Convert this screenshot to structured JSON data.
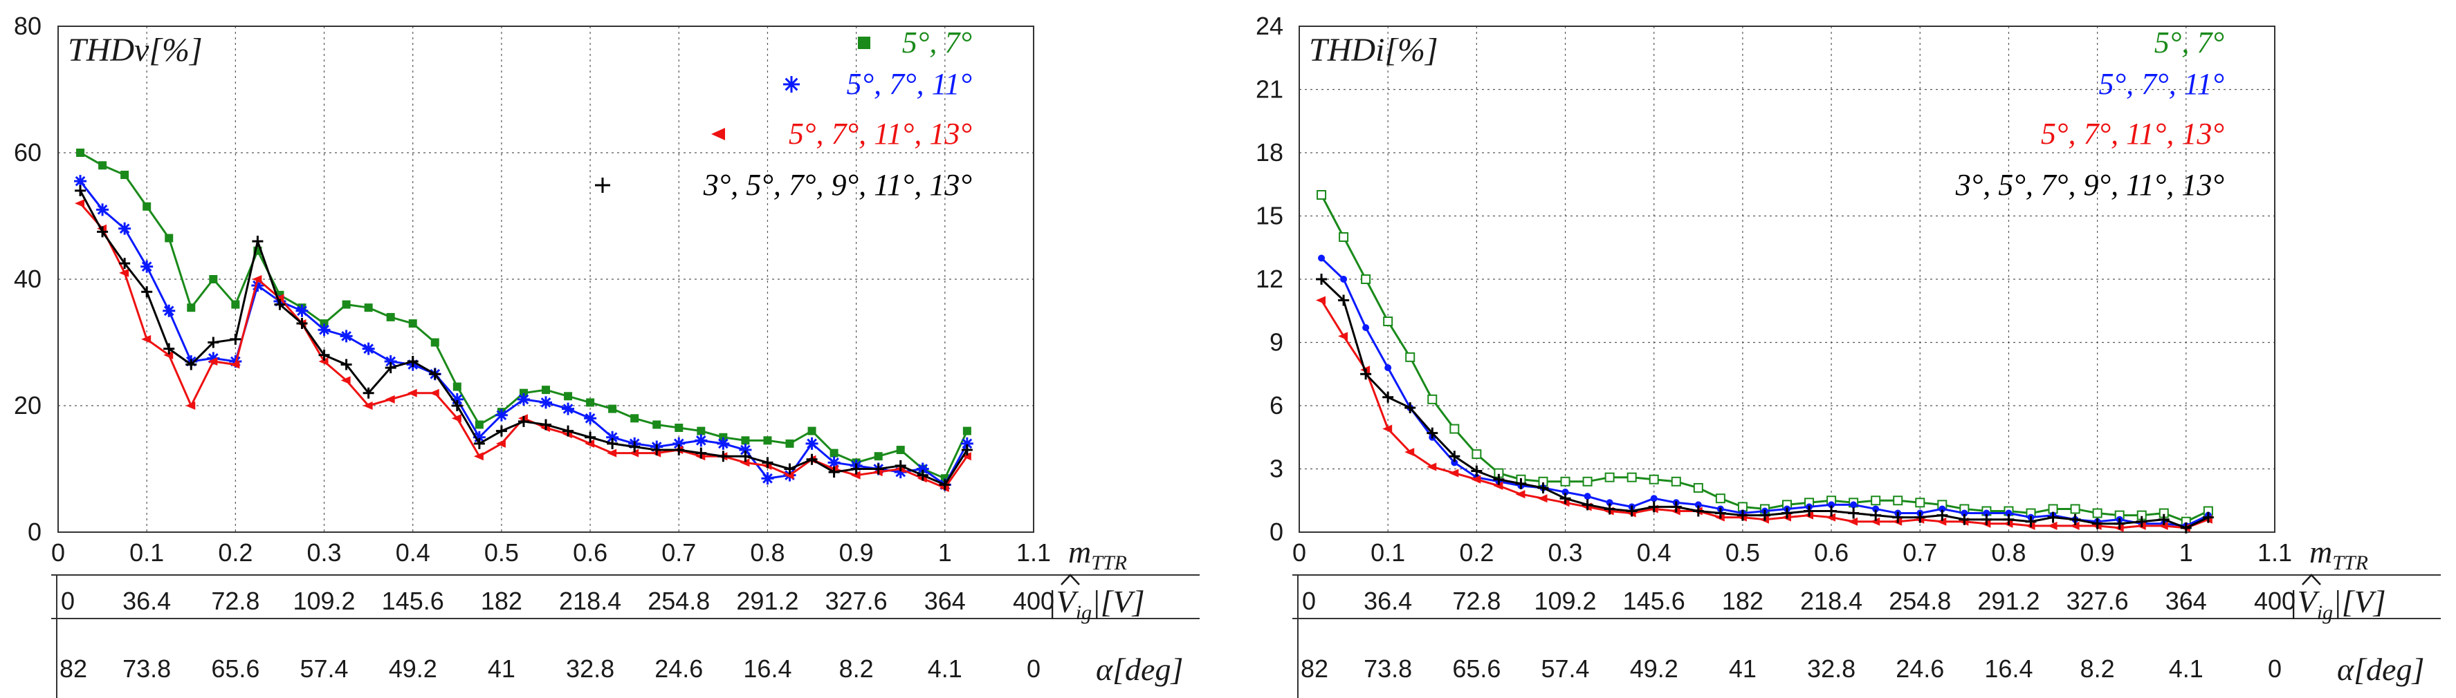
{
  "colors": {
    "green": "#1a8a1a",
    "blue": "#0a1aff",
    "red": "#ee1111",
    "black": "#000000"
  },
  "chart_data": [
    {
      "type": "line",
      "title": "THDv[%]",
      "ylim": [
        0,
        80
      ],
      "yticks": [
        "0",
        "20",
        "40",
        "60",
        "80"
      ],
      "ytick_values": [
        0,
        20,
        40,
        60,
        80
      ],
      "xlim": [
        0,
        1.1
      ],
      "xticks": [
        "0",
        "0.1",
        "0.2",
        "0.3",
        "0.4",
        "0.5",
        "0.6",
        "0.7",
        "0.8",
        "0.9",
        "1",
        "1.1"
      ],
      "xtick_values": [
        0,
        0.1,
        0.2,
        0.3,
        0.4,
        0.5,
        0.6,
        0.7,
        0.8,
        0.9,
        1,
        1.1
      ],
      "xlabel_main": "m",
      "xlabel_sub": "TTR",
      "v_axis": {
        "ticks": [
          "0",
          "36.4",
          "72.8",
          "109.2",
          "145.6",
          "182",
          "218.4",
          "254.8",
          "291.2",
          "327.6",
          "364",
          "400"
        ],
        "label_prefix": "|",
        "label_hat": "V",
        "label_sub": "ig",
        "label_suffix": "|[V]"
      },
      "alpha_axis": {
        "ticks": [
          "82",
          "73.8",
          "65.6",
          "57.4",
          "49.2",
          "41",
          "32.8",
          "24.6",
          "16.4",
          "8.2",
          "4.1",
          "0"
        ],
        "label": "α[deg]"
      },
      "x": [
        0.025,
        0.05,
        0.075,
        0.1,
        0.125,
        0.15,
        0.175,
        0.2,
        0.225,
        0.25,
        0.275,
        0.3,
        0.325,
        0.35,
        0.375,
        0.4,
        0.425,
        0.45,
        0.475,
        0.5,
        0.525,
        0.55,
        0.575,
        0.6,
        0.625,
        0.65,
        0.675,
        0.7,
        0.725,
        0.75,
        0.775,
        0.8,
        0.825,
        0.85,
        0.875,
        0.9,
        0.925,
        0.95,
        0.975,
        1.0,
        1.025
      ],
      "series": [
        {
          "name": "5°, 7°",
          "color": "green",
          "marker": "square",
          "values": [
            60,
            58,
            56.5,
            51.5,
            46.5,
            35.5,
            40,
            36,
            44.5,
            37.5,
            35.5,
            33,
            36,
            35.5,
            34,
            33,
            30,
            23,
            17,
            19,
            22,
            22.5,
            21.5,
            20.5,
            19.5,
            18,
            17,
            16.5,
            16,
            15,
            14.5,
            14.5,
            14,
            16,
            12.5,
            11,
            12,
            13,
            10,
            8.5,
            16
          ]
        },
        {
          "name": "5°, 7°, 11°",
          "color": "blue",
          "marker": "star",
          "values": [
            55.5,
            51,
            48,
            42,
            35,
            27,
            27.5,
            27,
            39,
            36.5,
            35,
            32,
            31,
            29,
            27,
            26.5,
            25,
            21,
            15,
            18.5,
            21,
            20.5,
            19.5,
            18,
            15,
            14,
            13.5,
            14,
            14.5,
            14,
            13,
            8.5,
            9,
            14,
            11,
            10.5,
            10,
            9.5,
            10,
            7.5,
            14
          ]
        },
        {
          "name": "5°, 7°, 11°, 13°",
          "color": "red",
          "marker": "triangle",
          "values": [
            52,
            48,
            41,
            30.5,
            28,
            20,
            27,
            26.5,
            40,
            37,
            33,
            27,
            24,
            20,
            21,
            22,
            22,
            18,
            12,
            14,
            18,
            16.5,
            15.5,
            14,
            12.5,
            12.5,
            12.5,
            13,
            12,
            12,
            11,
            10.5,
            9,
            11.5,
            10,
            9,
            9.5,
            10,
            8.5,
            7,
            12
          ]
        },
        {
          "name": "3°, 5°, 7°, 9°, 11°, 13°",
          "color": "black",
          "marker": "plus",
          "values": [
            54,
            47.5,
            42.5,
            38,
            29,
            26.5,
            30,
            30.5,
            46,
            36,
            33,
            28,
            26.5,
            22,
            26,
            27,
            25,
            20,
            14,
            16,
            17.5,
            17,
            16,
            15,
            14,
            13.5,
            13,
            13,
            12.5,
            12,
            12,
            11,
            10,
            11.5,
            9.5,
            10,
            10,
            10.5,
            9,
            7.5,
            13
          ]
        }
      ]
    },
    {
      "type": "line",
      "title": "THDi[%]",
      "ylim": [
        0,
        24
      ],
      "yticks": [
        "0",
        "3",
        "6",
        "9",
        "12",
        "15",
        "18",
        "21",
        "24"
      ],
      "ytick_values": [
        0,
        3,
        6,
        9,
        12,
        15,
        18,
        21,
        24
      ],
      "xlim": [
        0,
        1.1
      ],
      "xticks": [
        "0",
        "0.1",
        "0.2",
        "0.3",
        "0.4",
        "0.5",
        "0.6",
        "0.7",
        "0.8",
        "0.9",
        "1",
        "1.1"
      ],
      "xtick_values": [
        0,
        0.1,
        0.2,
        0.3,
        0.4,
        0.5,
        0.6,
        0.7,
        0.8,
        0.9,
        1,
        1.1
      ],
      "xlabel_main": "m",
      "xlabel_sub": "TTR",
      "v_axis": {
        "ticks": [
          "0",
          "36.4",
          "72.8",
          "109.2",
          "145.6",
          "182",
          "218.4",
          "254.8",
          "291.2",
          "327.6",
          "364",
          "400"
        ],
        "label_prefix": "|",
        "label_hat": "V",
        "label_sub": "ig",
        "label_suffix": "|[V]"
      },
      "alpha_axis": {
        "ticks": [
          "82",
          "73.8",
          "65.6",
          "57.4",
          "49.2",
          "41",
          "32.8",
          "24.6",
          "16.4",
          "8.2",
          "4.1",
          "0"
        ],
        "label": "α[deg]"
      },
      "x": [
        0.025,
        0.05,
        0.075,
        0.1,
        0.125,
        0.15,
        0.175,
        0.2,
        0.225,
        0.25,
        0.275,
        0.3,
        0.325,
        0.35,
        0.375,
        0.4,
        0.425,
        0.45,
        0.475,
        0.5,
        0.525,
        0.55,
        0.575,
        0.6,
        0.625,
        0.65,
        0.675,
        0.7,
        0.725,
        0.75,
        0.775,
        0.8,
        0.825,
        0.85,
        0.875,
        0.9,
        0.925,
        0.95,
        0.975,
        1.0,
        1.025
      ],
      "series": [
        {
          "name": "5°, 7°",
          "color": "green",
          "marker": "square-open",
          "values": [
            16,
            14,
            12,
            10,
            8.3,
            6.3,
            4.9,
            3.7,
            2.8,
            2.5,
            2.4,
            2.4,
            2.4,
            2.6,
            2.6,
            2.5,
            2.4,
            2.1,
            1.6,
            1.2,
            1.1,
            1.3,
            1.4,
            1.5,
            1.4,
            1.5,
            1.5,
            1.4,
            1.3,
            1.1,
            1.0,
            1.0,
            0.9,
            1.1,
            1.1,
            0.9,
            0.8,
            0.8,
            0.9,
            0.5,
            1.0
          ]
        },
        {
          "name": "5°, 7°, 11°",
          "color": "blue",
          "marker": "dot",
          "values": [
            13,
            12,
            9.7,
            7.8,
            5.9,
            4.5,
            3.3,
            2.6,
            2.4,
            2.2,
            2.1,
            1.9,
            1.7,
            1.4,
            1.2,
            1.6,
            1.4,
            1.3,
            1.1,
            0.9,
            1.0,
            1.1,
            1.2,
            1.3,
            1.3,
            1.1,
            0.9,
            0.9,
            1.1,
            0.9,
            0.9,
            0.9,
            0.7,
            0.8,
            0.6,
            0.5,
            0.6,
            0.4,
            0.4,
            0.3,
            0.8
          ]
        },
        {
          "name": "5°, 7°, 11°, 13°",
          "color": "red",
          "marker": "triangle",
          "values": [
            11,
            9.3,
            7.7,
            4.9,
            3.8,
            3.1,
            2.8,
            2.5,
            2.2,
            1.8,
            1.6,
            1.4,
            1.2,
            1.0,
            0.9,
            1.1,
            1.0,
            1.0,
            0.7,
            0.7,
            0.6,
            0.7,
            0.8,
            0.7,
            0.5,
            0.5,
            0.5,
            0.6,
            0.5,
            0.5,
            0.4,
            0.4,
            0.3,
            0.3,
            0.3,
            0.3,
            0.2,
            0.3,
            0.3,
            0.2,
            0.6
          ]
        },
        {
          "name": "3°, 5°, 7°, 9°, 11°, 13°",
          "color": "black",
          "marker": "plus",
          "values": [
            12,
            11,
            7.5,
            6.4,
            5.9,
            4.7,
            3.6,
            2.9,
            2.5,
            2.3,
            2.1,
            1.6,
            1.3,
            1.1,
            1.0,
            1.2,
            1.2,
            1.0,
            0.9,
            0.8,
            0.8,
            0.9,
            1.0,
            1.0,
            0.9,
            0.8,
            0.7,
            0.7,
            0.8,
            0.6,
            0.6,
            0.6,
            0.5,
            0.7,
            0.6,
            0.4,
            0.4,
            0.5,
            0.6,
            0.2,
            0.7
          ]
        }
      ]
    }
  ]
}
